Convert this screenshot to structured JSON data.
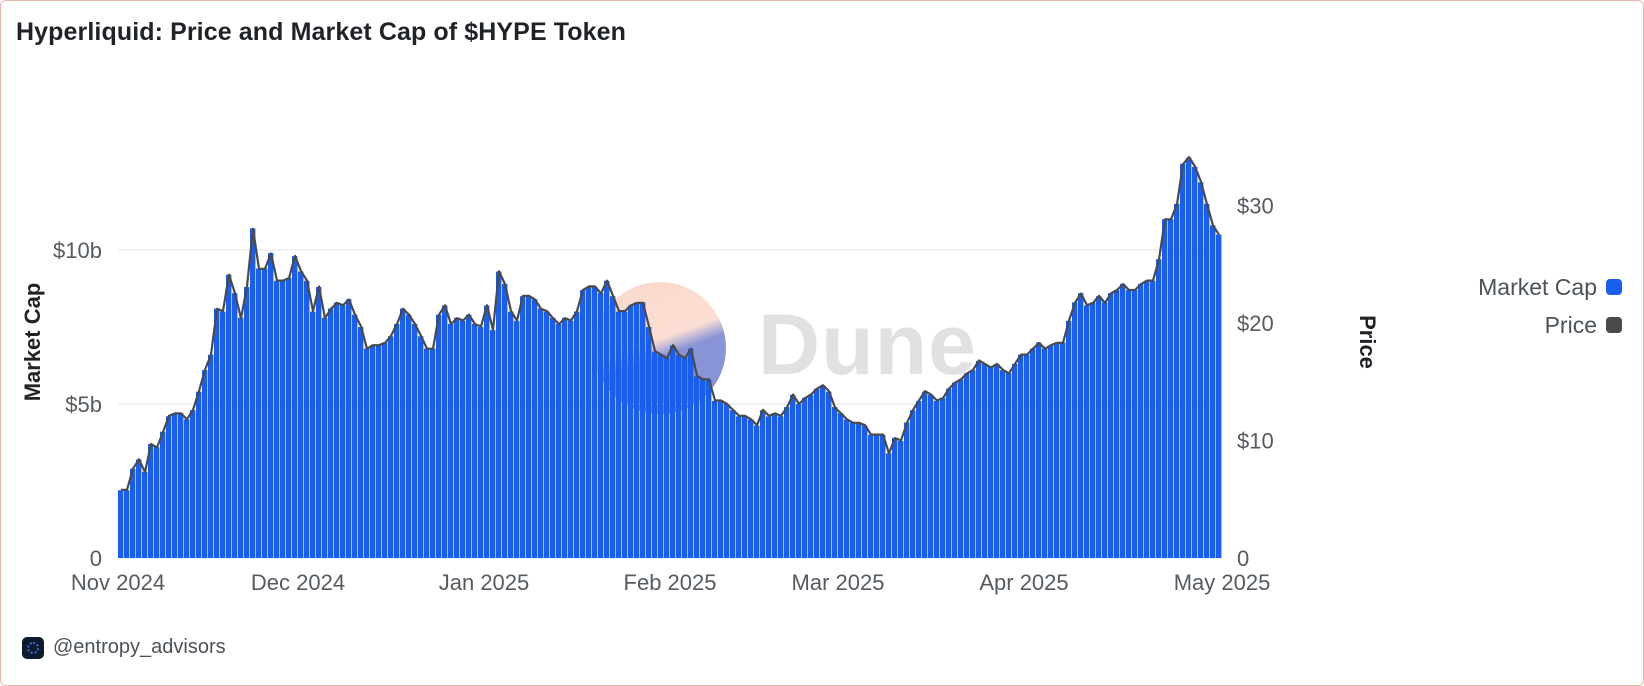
{
  "title": "Hyperliquid: Price and Market Cap of $HYPE Token",
  "footer": {
    "handle": "@entropy_advisors"
  },
  "watermark": "Dune",
  "legend": [
    {
      "label": "Market Cap",
      "color": "#1a5ef0"
    },
    {
      "label": "Price",
      "color": "#4a4a4a"
    }
  ],
  "chart_data": {
    "type": "bar",
    "x_ticks": [
      "Nov 2024",
      "Dec 2024",
      "Jan 2025",
      "Feb 2025",
      "Mar 2025",
      "Apr 2025",
      "May 2025"
    ],
    "y_left": {
      "label": "Market Cap",
      "ticks": [
        "0",
        "$5b",
        "$10b"
      ],
      "lim": [
        0,
        15
      ]
    },
    "y_right": {
      "label": "Price",
      "ticks": [
        "0",
        "$10",
        "$20",
        "$30"
      ],
      "lim": [
        0,
        39.3
      ]
    },
    "grid": true,
    "legend_position": "right",
    "series": [
      {
        "name": "Market Cap",
        "axis": "left",
        "unit": "billion USD",
        "color": "#1a5ef0",
        "values": [
          2.2,
          2.2,
          2.9,
          3.2,
          2.8,
          3.7,
          3.6,
          4.1,
          4.6,
          4.7,
          4.7,
          4.5,
          4.8,
          5.4,
          6.1,
          6.6,
          8.1,
          8.0,
          9.2,
          8.6,
          7.8,
          8.8,
          10.7,
          9.4,
          9.4,
          9.9,
          9.0,
          9.0,
          9.1,
          9.8,
          9.3,
          9.0,
          8.0,
          8.8,
          7.8,
          8.1,
          8.3,
          8.2,
          8.4,
          7.9,
          7.5,
          6.8,
          6.9,
          6.9,
          7.0,
          7.2,
          7.6,
          8.1,
          7.9,
          7.6,
          7.2,
          6.8,
          6.8,
          7.9,
          8.2,
          7.6,
          7.8,
          7.7,
          7.9,
          7.6,
          7.5,
          8.2,
          7.4,
          9.3,
          8.9,
          8.0,
          7.7,
          8.5,
          8.5,
          8.4,
          8.1,
          8.0,
          7.8,
          7.6,
          7.8,
          7.7,
          8.0,
          8.7,
          8.8,
          8.8,
          8.6,
          9.0,
          8.5,
          8.0,
          8.0,
          8.2,
          8.3,
          8.3,
          7.5,
          6.7,
          6.6,
          6.5,
          6.9,
          6.6,
          6.5,
          6.8,
          5.9,
          5.8,
          5.8,
          5.1,
          5.1,
          5.0,
          4.8,
          4.6,
          4.6,
          4.5,
          4.3,
          4.8,
          4.6,
          4.7,
          4.6,
          4.9,
          5.3,
          5.0,
          5.2,
          5.3,
          5.5,
          5.6,
          5.4,
          4.9,
          4.7,
          4.5,
          4.4,
          4.4,
          4.3,
          4.0,
          4.0,
          4.0,
          3.4,
          3.9,
          3.8,
          4.4,
          4.8,
          5.1,
          5.4,
          5.3,
          5.1,
          5.2,
          5.5,
          5.7,
          5.8,
          6.0,
          6.1,
          6.4,
          6.3,
          6.2,
          6.3,
          6.1,
          6.0,
          6.3,
          6.6,
          6.6,
          6.8,
          7.0,
          6.8,
          6.9,
          7.0,
          7.0,
          7.7,
          8.3,
          8.6,
          8.2,
          8.3,
          8.5,
          8.3,
          8.6,
          8.7,
          8.9,
          8.7,
          8.7,
          8.9,
          9.0,
          9.0,
          9.7,
          11.0,
          11.0,
          11.5,
          12.8,
          13.0,
          12.7,
          12.2,
          11.5,
          10.8,
          10.5
        ]
      },
      {
        "name": "Price",
        "axis": "right",
        "unit": "USD",
        "color": "#4a4a4a",
        "values": [
          5.8,
          5.8,
          7.6,
          8.4,
          7.3,
          9.7,
          9.4,
          10.7,
          12.1,
          12.3,
          12.3,
          11.8,
          12.6,
          14.2,
          16.0,
          17.3,
          21.2,
          21.0,
          24.1,
          22.5,
          20.4,
          23.1,
          28.0,
          24.6,
          24.6,
          25.9,
          23.6,
          23.6,
          23.8,
          25.7,
          24.4,
          23.6,
          21.0,
          23.1,
          20.4,
          21.2,
          21.7,
          21.5,
          22.0,
          20.7,
          19.7,
          17.8,
          18.1,
          18.1,
          18.3,
          18.9,
          19.9,
          21.2,
          20.7,
          19.9,
          18.9,
          17.8,
          17.8,
          20.7,
          21.5,
          19.9,
          20.4,
          20.2,
          20.7,
          19.9,
          19.7,
          21.5,
          19.4,
          24.4,
          23.3,
          21.0,
          20.2,
          22.3,
          22.3,
          22.0,
          21.2,
          21.0,
          20.4,
          19.9,
          20.4,
          20.2,
          21.0,
          22.8,
          23.1,
          23.1,
          22.5,
          23.6,
          22.3,
          21.0,
          21.0,
          21.5,
          21.7,
          21.7,
          19.7,
          17.6,
          17.3,
          17.0,
          18.1,
          17.3,
          17.0,
          17.8,
          15.5,
          15.2,
          15.2,
          13.4,
          13.4,
          13.1,
          12.6,
          12.1,
          12.1,
          11.8,
          11.3,
          12.6,
          12.1,
          12.3,
          12.1,
          12.8,
          13.9,
          13.1,
          13.6,
          13.9,
          14.4,
          14.7,
          14.2,
          12.8,
          12.3,
          11.8,
          11.5,
          11.5,
          11.3,
          10.5,
          10.5,
          10.5,
          8.9,
          10.2,
          10.0,
          11.5,
          12.6,
          13.4,
          14.2,
          13.9,
          13.4,
          13.6,
          14.4,
          14.9,
          15.2,
          15.7,
          16.0,
          16.8,
          16.5,
          16.2,
          16.5,
          16.0,
          15.7,
          16.5,
          17.3,
          17.3,
          17.8,
          18.3,
          17.8,
          18.1,
          18.3,
          18.3,
          20.2,
          21.7,
          22.5,
          21.5,
          21.7,
          22.3,
          21.7,
          22.5,
          22.8,
          23.3,
          22.8,
          22.8,
          23.3,
          23.6,
          23.6,
          25.4,
          28.8,
          28.8,
          30.1,
          33.5,
          34.1,
          33.3,
          32.0,
          30.1,
          28.3,
          27.5
        ]
      }
    ]
  }
}
